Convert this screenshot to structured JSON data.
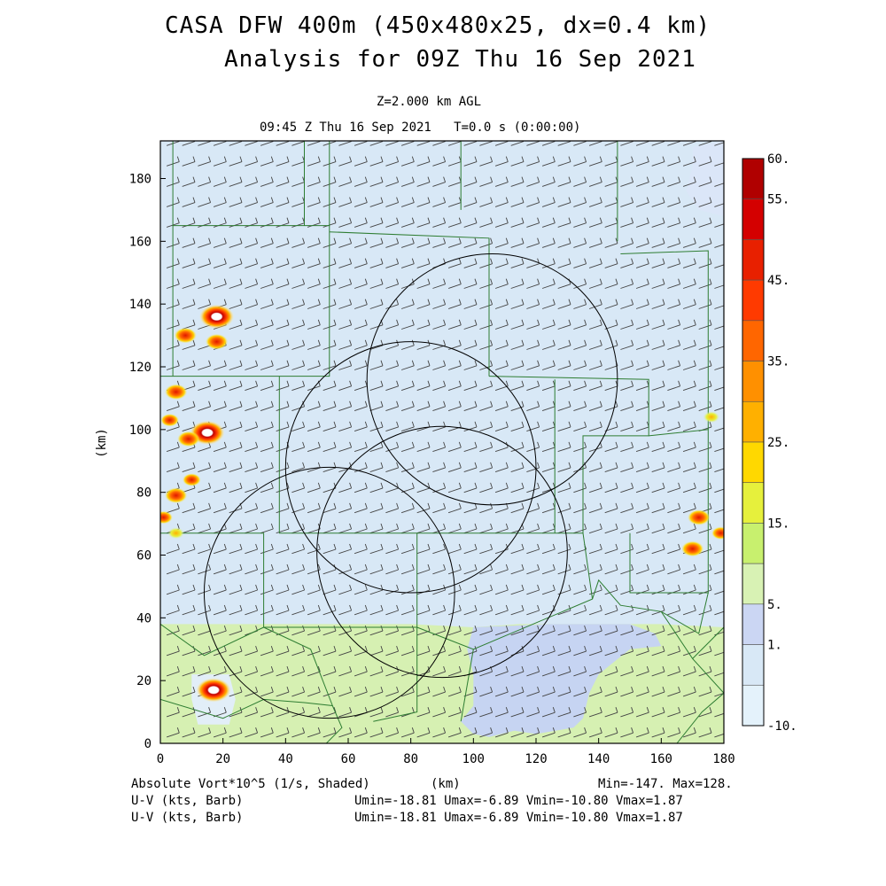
{
  "title_line1": "CASA DFW 400m (450x480x25, dx=0.4 km)",
  "title_line2": "Analysis for 09Z Thu 16 Sep 2021",
  "level_line": "Z=2.000 km AGL",
  "time_line": "09:45 Z Thu 16 Sep 2021   T=0.0 s (0:00:00)",
  "footer": {
    "left1": "Absolute Vort*10^5 (1/s, Shaded)",
    "xunit": "(km)",
    "minmax": "Min=-147. Max=128.",
    "left2": "U-V (kts, Barb)",
    "uv2": "Umin=-18.81 Umax=-6.89 Vmin=-10.80 Vmax=1.87",
    "left3": "U-V (kts, Barb)",
    "uv3": "Umin=-18.81 Umax=-6.89 Vmin=-10.80 Vmax=1.87"
  },
  "colors": {
    "background_field": "#d8e8f6",
    "low_blue": "#c6d4f2",
    "green": "#d6f0b2",
    "county_lines": "#2e7d32",
    "range_rings": "#000000"
  },
  "chart_data": {
    "type": "heatmap",
    "xlabel": "(km)",
    "ylabel": "(km)",
    "xlim": [
      0,
      180
    ],
    "ylim": [
      0,
      192
    ],
    "x_ticks": [
      "0",
      "20",
      "40",
      "60",
      "80",
      "100",
      "120",
      "140",
      "160",
      "180"
    ],
    "y_ticks": [
      "0",
      "20",
      "40",
      "60",
      "80",
      "100",
      "120",
      "140",
      "160",
      "180"
    ],
    "colorbar": {
      "labels": [
        "60.",
        "55.",
        "45.",
        "35.",
        "25.",
        "15.",
        "5.",
        "1.",
        "-10."
      ],
      "colors": [
        "#b00000",
        "#d40000",
        "#e82000",
        "#ff3a00",
        "#ff6600",
        "#ff9000",
        "#ffb000",
        "#ffd800",
        "#e6f03c",
        "#c8f06e",
        "#d8f2b4",
        "#cbd6f3",
        "#d8e8f6",
        "#e4f2fb"
      ]
    },
    "range_rings_km": [
      {
        "center": [
          106,
          116
        ],
        "radius": 40
      },
      {
        "center": [
          80,
          88
        ],
        "radius": 40
      },
      {
        "center": [
          90,
          61
        ],
        "radius": 40
      },
      {
        "center": [
          54,
          48
        ],
        "radius": 40
      }
    ],
    "vorticity_maxima": [
      {
        "x": 18,
        "y": 136,
        "value": 60
      },
      {
        "x": 8,
        "y": 130,
        "value": 45
      },
      {
        "x": 18,
        "y": 128,
        "value": 40
      },
      {
        "x": 5,
        "y": 112,
        "value": 35
      },
      {
        "x": 3,
        "y": 103,
        "value": 25
      },
      {
        "x": 15,
        "y": 99,
        "value": 60
      },
      {
        "x": 9,
        "y": 97,
        "value": 30
      },
      {
        "x": 10,
        "y": 84,
        "value": 20
      },
      {
        "x": 5,
        "y": 79,
        "value": 30
      },
      {
        "x": 1,
        "y": 72,
        "value": 20
      },
      {
        "x": 5,
        "y": 67,
        "value": 15
      },
      {
        "x": 172,
        "y": 72,
        "value": 30
      },
      {
        "x": 170,
        "y": 62,
        "value": 40
      },
      {
        "x": 179,
        "y": 67,
        "value": 25
      },
      {
        "x": 176,
        "y": 104,
        "value": 15
      },
      {
        "x": 17,
        "y": 17,
        "value": 60
      }
    ],
    "wind_barbs": {
      "u_kts": -12,
      "v_kts": -4
    }
  }
}
